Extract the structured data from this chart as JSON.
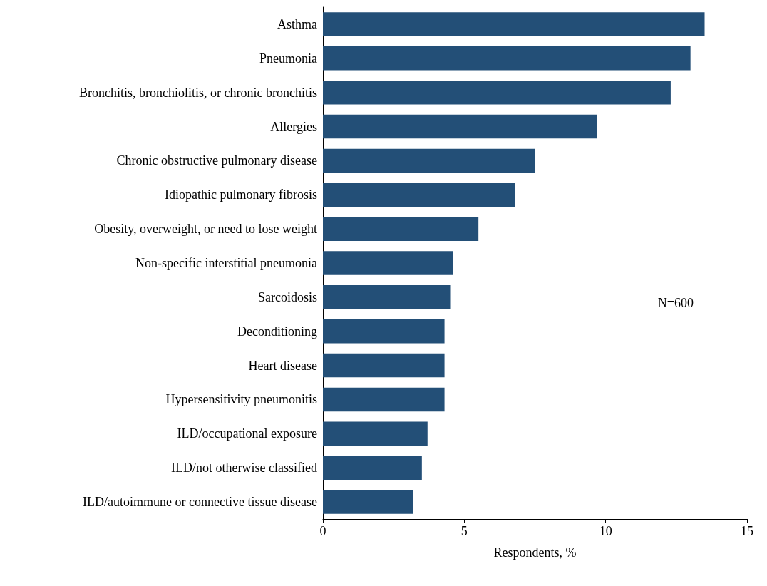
{
  "chart_data": {
    "type": "bar",
    "orientation": "horizontal",
    "xlabel": "Respondents, %",
    "categories": [
      "Asthma",
      "Pneumonia",
      "Bronchitis, bronchiolitis, or chronic bronchitis",
      "Allergies",
      "Chronic obstructive pulmonary disease",
      "Idiopathic pulmonary fibrosis",
      "Obesity, overweight, or need to lose weight",
      "Non-specific interstitial pneumonia",
      "Sarcoidosis",
      "Deconditioning",
      "Heart disease",
      "Hypersensitivity pneumonitis",
      "ILD/occupational exposure",
      "ILD/not otherwise classified",
      "ILD/autoimmune or connective tissue disease"
    ],
    "values": [
      13.5,
      13.0,
      12.3,
      9.7,
      7.5,
      6.8,
      5.5,
      4.6,
      4.5,
      4.3,
      4.3,
      4.3,
      3.7,
      3.5,
      3.2
    ],
    "color": "#234f77",
    "xlim": [
      0,
      15
    ],
    "xticks": [
      0,
      5,
      10,
      15
    ],
    "grid": false,
    "annotations": [
      "N=600"
    ]
  }
}
